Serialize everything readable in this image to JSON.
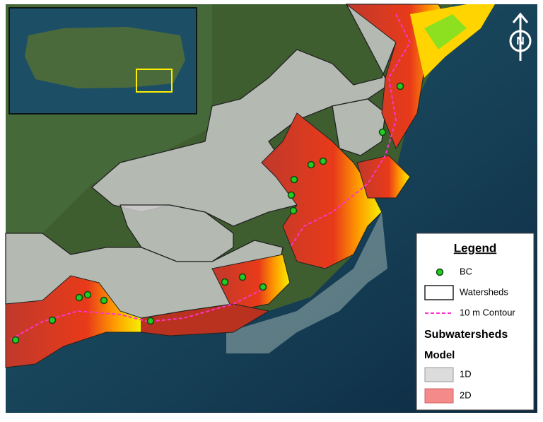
{
  "legend": {
    "title": "Legend",
    "items": [
      {
        "label": "BC"
      },
      {
        "label": "Watersheds"
      },
      {
        "label": "10 m Contour"
      }
    ],
    "subtitle": "Subwatersheds",
    "group_title": "Model",
    "model_items": [
      {
        "label": "1D"
      },
      {
        "label": "2D"
      }
    ]
  },
  "north_arrow": {
    "label": "N"
  }
}
